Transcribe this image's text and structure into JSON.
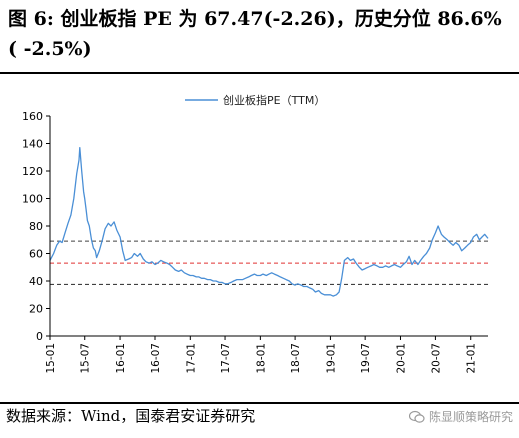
{
  "header": {
    "title_line1": "图 6: 创业板指 PE 为 67.47(-2.26)，历史分位 86.6%",
    "title_line2": "( -2.5%)"
  },
  "footer": {
    "source": "数据来源：Wind，国泰君安证券研究",
    "watermark": "陈显顺策略研究",
    "watermark_icon": "wechat-icon"
  },
  "colors": {
    "series": "#4a8fd6",
    "upper_line": "#404040",
    "mean_line": "#e03030",
    "lower_line": "#404040"
  },
  "chart_data": {
    "type": "line",
    "title": "",
    "xlabel": "",
    "ylabel": "",
    "legend": {
      "position": "top-center",
      "entries": [
        "创业板指PE（TTM）"
      ]
    },
    "ylim": [
      0,
      160
    ],
    "y_ticks": [
      "0",
      "20",
      "40",
      "60",
      "80",
      "100",
      "120",
      "140",
      "160"
    ],
    "x_range": [
      "2015-01-01",
      "2021-04-01"
    ],
    "x_ticks": [
      "15-01",
      "15-07",
      "16-01",
      "16-07",
      "17-01",
      "17-07",
      "18-01",
      "18-07",
      "19-01",
      "19-07",
      "20-01",
      "20-07",
      "21-01"
    ],
    "grid": false,
    "reference_lines": [
      {
        "value": 69,
        "style": "dashed"
      },
      {
        "value": 53,
        "style": "dashed"
      },
      {
        "value": 37.5,
        "style": "dashed"
      }
    ],
    "series": [
      {
        "name": "创业板指PE（TTM）",
        "x": [
          "2015-01-01",
          "2015-01-20",
          "2015-02-05",
          "2015-02-20",
          "2015-03-05",
          "2015-03-20",
          "2015-04-05",
          "2015-04-20",
          "2015-05-05",
          "2015-05-20",
          "2015-06-01",
          "2015-06-05",
          "2015-06-15",
          "2015-06-25",
          "2015-07-01",
          "2015-07-08",
          "2015-07-15",
          "2015-07-25",
          "2015-08-05",
          "2015-08-15",
          "2015-08-25",
          "2015-09-01",
          "2015-09-15",
          "2015-10-01",
          "2015-10-15",
          "2015-11-01",
          "2015-11-15",
          "2015-12-01",
          "2015-12-15",
          "2016-01-01",
          "2016-01-15",
          "2016-01-28",
          "2016-02-15",
          "2016-03-01",
          "2016-03-15",
          "2016-04-01",
          "2016-04-15",
          "2016-05-01",
          "2016-05-15",
          "2016-06-01",
          "2016-06-15",
          "2016-07-01",
          "2016-07-15",
          "2016-08-01",
          "2016-08-15",
          "2016-09-01",
          "2016-09-15",
          "2016-10-01",
          "2016-10-15",
          "2016-11-01",
          "2016-11-15",
          "2016-12-01",
          "2016-12-15",
          "2017-01-01",
          "2017-01-15",
          "2017-02-01",
          "2017-02-15",
          "2017-03-01",
          "2017-03-15",
          "2017-04-01",
          "2017-04-15",
          "2017-05-01",
          "2017-05-15",
          "2017-06-01",
          "2017-06-15",
          "2017-07-01",
          "2017-07-15",
          "2017-08-01",
          "2017-08-15",
          "2017-09-01",
          "2017-09-15",
          "2017-10-01",
          "2017-10-15",
          "2017-11-01",
          "2017-11-15",
          "2017-12-01",
          "2017-12-15",
          "2018-01-01",
          "2018-01-15",
          "2018-02-01",
          "2018-02-15",
          "2018-03-01",
          "2018-03-15",
          "2018-04-01",
          "2018-04-15",
          "2018-05-01",
          "2018-05-15",
          "2018-06-01",
          "2018-06-15",
          "2018-07-01",
          "2018-07-15",
          "2018-08-01",
          "2018-08-15",
          "2018-09-01",
          "2018-09-15",
          "2018-10-01",
          "2018-10-15",
          "2018-11-01",
          "2018-11-15",
          "2018-12-01",
          "2018-12-15",
          "2019-01-01",
          "2019-01-15",
          "2019-02-01",
          "2019-02-15",
          "2019-03-01",
          "2019-03-15",
          "2019-04-01",
          "2019-04-15",
          "2019-05-01",
          "2019-05-15",
          "2019-06-01",
          "2019-06-15",
          "2019-07-01",
          "2019-07-15",
          "2019-08-01",
          "2019-08-15",
          "2019-09-01",
          "2019-09-15",
          "2019-10-01",
          "2019-10-15",
          "2019-11-01",
          "2019-11-15",
          "2019-12-01",
          "2019-12-15",
          "2020-01-01",
          "2020-01-15",
          "2020-02-01",
          "2020-02-15",
          "2020-03-01",
          "2020-03-15",
          "2020-04-01",
          "2020-04-15",
          "2020-05-01",
          "2020-05-15",
          "2020-06-01",
          "2020-06-15",
          "2020-07-01",
          "2020-07-15",
          "2020-08-01",
          "2020-08-15",
          "2020-09-01",
          "2020-09-15",
          "2020-10-01",
          "2020-10-15",
          "2020-11-01",
          "2020-11-15",
          "2020-12-01",
          "2020-12-15",
          "2021-01-01",
          "2021-01-15",
          "2021-02-01",
          "2021-02-15",
          "2021-03-01",
          "2021-03-15",
          "2021-04-01"
        ],
        "values": [
          55,
          60,
          66,
          69,
          68,
          75,
          82,
          88,
          100,
          118,
          128,
          137,
          120,
          105,
          100,
          92,
          84,
          80,
          70,
          64,
          62,
          57,
          62,
          70,
          78,
          82,
          80,
          83,
          77,
          72,
          62,
          55,
          56,
          57,
          60,
          58,
          60,
          56,
          54,
          53,
          54,
          52,
          53,
          55,
          54,
          53,
          52,
          50,
          48,
          47,
          48,
          46,
          45,
          44,
          44,
          43,
          43,
          42,
          42,
          41,
          41,
          40,
          40,
          39,
          39,
          38,
          38,
          39,
          40,
          41,
          41,
          41,
          42,
          43,
          44,
          45,
          44,
          44,
          45,
          44,
          45,
          46,
          45,
          44,
          43,
          42,
          41,
          40,
          38,
          37,
          38,
          37,
          36,
          36,
          35,
          34,
          32,
          33,
          31,
          30,
          30,
          30,
          29,
          30,
          32,
          42,
          55,
          57,
          55,
          56,
          53,
          50,
          48,
          49,
          50,
          51,
          52,
          51,
          50,
          50,
          51,
          50,
          51,
          52,
          51,
          50,
          52,
          54,
          58,
          52,
          55,
          52,
          55,
          58,
          60,
          64,
          70,
          75,
          80,
          74,
          72,
          70,
          68,
          66,
          68,
          66,
          62,
          64,
          66,
          68,
          72,
          74,
          70,
          72,
          74,
          71
        ]
      }
    ]
  }
}
